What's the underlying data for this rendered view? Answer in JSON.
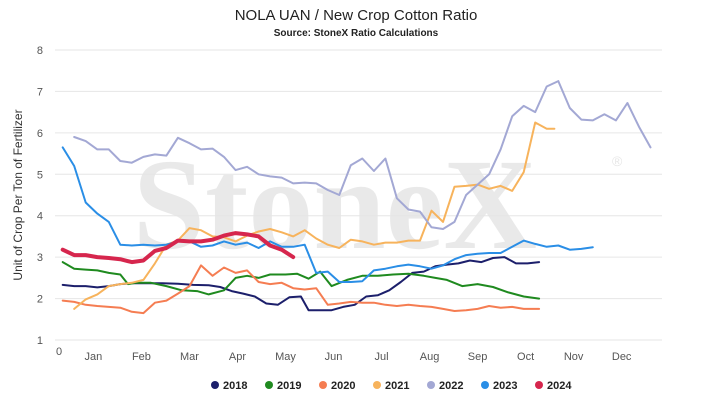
{
  "chart_data": {
    "type": "line",
    "title": "NOLA UAN / New Crop Cotton Ratio",
    "subtitle": "Source: StoneX Ratio Calculations",
    "ylabel": "Unit of Crop Per Ton of Fertilizer",
    "xlabel": "",
    "ylim": [
      1,
      8
    ],
    "yticks": [
      "1",
      "2",
      "3",
      "4",
      "5",
      "6",
      "7",
      "8"
    ],
    "x_origin_label": "0",
    "month_labels": [
      "Jan",
      "Feb",
      "Mar",
      "Apr",
      "May",
      "Jun",
      "Jul",
      "Aug",
      "Sep",
      "Oct",
      "Nov",
      "Dec"
    ],
    "watermark": "StoneX",
    "grid": "horizontal",
    "legend_position": "bottom",
    "series": [
      {
        "name": "2018",
        "color": "#1c1f6b",
        "width": 2,
        "points": [
          [
            0.2,
            2.33
          ],
          [
            0.5,
            2.3
          ],
          [
            0.8,
            2.3
          ],
          [
            1.1,
            2.27
          ],
          [
            1.4,
            2.3
          ],
          [
            1.7,
            2.35
          ],
          [
            2.0,
            2.37
          ],
          [
            2.4,
            2.37
          ],
          [
            2.8,
            2.37
          ],
          [
            3.2,
            2.36
          ],
          [
            3.6,
            2.33
          ],
          [
            4.0,
            2.32
          ],
          [
            4.3,
            2.28
          ],
          [
            4.6,
            2.18
          ],
          [
            4.9,
            2.12
          ],
          [
            5.2,
            2.05
          ],
          [
            5.5,
            1.88
          ],
          [
            5.8,
            1.85
          ],
          [
            6.1,
            2.03
          ],
          [
            6.4,
            2.05
          ],
          [
            6.6,
            1.72
          ],
          [
            6.9,
            1.72
          ],
          [
            7.2,
            1.72
          ],
          [
            7.5,
            1.8
          ],
          [
            7.8,
            1.85
          ],
          [
            8.1,
            2.05
          ],
          [
            8.4,
            2.08
          ],
          [
            8.7,
            2.2
          ],
          [
            9.0,
            2.4
          ],
          [
            9.3,
            2.62
          ],
          [
            9.6,
            2.65
          ],
          [
            9.9,
            2.78
          ],
          [
            10.2,
            2.82
          ],
          [
            10.5,
            2.85
          ],
          [
            10.8,
            2.92
          ],
          [
            11.1,
            2.88
          ],
          [
            11.4,
            2.98
          ],
          [
            11.7,
            3.0
          ],
          [
            12.0,
            2.85
          ],
          [
            12.3,
            2.85
          ],
          [
            12.6,
            2.88
          ]
        ]
      },
      {
        "name": "2019",
        "color": "#1f8a1f",
        "width": 2,
        "points": [
          [
            0.2,
            2.88
          ],
          [
            0.5,
            2.72
          ],
          [
            0.8,
            2.7
          ],
          [
            1.1,
            2.68
          ],
          [
            1.4,
            2.62
          ],
          [
            1.7,
            2.58
          ],
          [
            1.9,
            2.35
          ],
          [
            2.1,
            2.38
          ],
          [
            2.5,
            2.38
          ],
          [
            2.9,
            2.3
          ],
          [
            3.3,
            2.2
          ],
          [
            3.7,
            2.18
          ],
          [
            4.0,
            2.1
          ],
          [
            4.4,
            2.2
          ],
          [
            4.7,
            2.5
          ],
          [
            5.0,
            2.55
          ],
          [
            5.3,
            2.5
          ],
          [
            5.6,
            2.58
          ],
          [
            6.0,
            2.58
          ],
          [
            6.3,
            2.6
          ],
          [
            6.6,
            2.48
          ],
          [
            6.9,
            2.65
          ],
          [
            7.2,
            2.3
          ],
          [
            7.6,
            2.45
          ],
          [
            8.0,
            2.55
          ],
          [
            8.4,
            2.55
          ],
          [
            8.8,
            2.58
          ],
          [
            9.2,
            2.6
          ],
          [
            9.6,
            2.55
          ],
          [
            9.9,
            2.5
          ],
          [
            10.2,
            2.45
          ],
          [
            10.6,
            2.3
          ],
          [
            11.0,
            2.35
          ],
          [
            11.4,
            2.28
          ],
          [
            11.8,
            2.15
          ],
          [
            12.2,
            2.05
          ],
          [
            12.6,
            2.0
          ]
        ]
      },
      {
        "name": "2020",
        "color": "#f57d52",
        "width": 2,
        "points": [
          [
            0.2,
            1.95
          ],
          [
            0.5,
            1.92
          ],
          [
            0.8,
            1.85
          ],
          [
            1.1,
            1.82
          ],
          [
            1.4,
            1.8
          ],
          [
            1.7,
            1.78
          ],
          [
            2.0,
            1.68
          ],
          [
            2.3,
            1.65
          ],
          [
            2.6,
            1.9
          ],
          [
            2.9,
            1.95
          ],
          [
            3.2,
            2.12
          ],
          [
            3.5,
            2.3
          ],
          [
            3.8,
            2.8
          ],
          [
            4.1,
            2.55
          ],
          [
            4.4,
            2.75
          ],
          [
            4.7,
            2.62
          ],
          [
            5.0,
            2.68
          ],
          [
            5.3,
            2.4
          ],
          [
            5.6,
            2.35
          ],
          [
            5.9,
            2.38
          ],
          [
            6.2,
            2.25
          ],
          [
            6.5,
            2.22
          ],
          [
            6.8,
            2.25
          ],
          [
            7.1,
            1.85
          ],
          [
            7.4,
            1.88
          ],
          [
            7.7,
            1.92
          ],
          [
            8.0,
            1.9
          ],
          [
            8.3,
            1.9
          ],
          [
            8.6,
            1.85
          ],
          [
            8.9,
            1.82
          ],
          [
            9.2,
            1.85
          ],
          [
            9.5,
            1.82
          ],
          [
            9.8,
            1.8
          ],
          [
            10.1,
            1.75
          ],
          [
            10.4,
            1.7
          ],
          [
            10.7,
            1.72
          ],
          [
            11.0,
            1.75
          ],
          [
            11.3,
            1.82
          ],
          [
            11.6,
            1.78
          ],
          [
            11.9,
            1.8
          ],
          [
            12.2,
            1.75
          ],
          [
            12.6,
            1.75
          ]
        ]
      },
      {
        "name": "2021",
        "color": "#f7b35c",
        "width": 2,
        "points": [
          [
            0.5,
            1.75
          ],
          [
            0.8,
            1.98
          ],
          [
            1.1,
            2.1
          ],
          [
            1.4,
            2.3
          ],
          [
            1.7,
            2.35
          ],
          [
            2.0,
            2.38
          ],
          [
            2.3,
            2.45
          ],
          [
            2.6,
            2.85
          ],
          [
            2.9,
            3.3
          ],
          [
            3.2,
            3.4
          ],
          [
            3.5,
            3.7
          ],
          [
            3.8,
            3.65
          ],
          [
            4.1,
            3.5
          ],
          [
            4.4,
            3.48
          ],
          [
            4.7,
            3.38
          ],
          [
            5.0,
            3.52
          ],
          [
            5.3,
            3.62
          ],
          [
            5.6,
            3.68
          ],
          [
            5.9,
            3.6
          ],
          [
            6.2,
            3.5
          ],
          [
            6.5,
            3.65
          ],
          [
            6.8,
            3.45
          ],
          [
            7.1,
            3.3
          ],
          [
            7.4,
            3.22
          ],
          [
            7.7,
            3.42
          ],
          [
            8.0,
            3.38
          ],
          [
            8.3,
            3.3
          ],
          [
            8.6,
            3.35
          ],
          [
            8.9,
            3.35
          ],
          [
            9.2,
            3.4
          ],
          [
            9.5,
            3.4
          ],
          [
            9.8,
            4.12
          ],
          [
            10.1,
            3.85
          ],
          [
            10.4,
            4.7
          ],
          [
            10.7,
            4.72
          ],
          [
            11.0,
            4.75
          ],
          [
            11.3,
            4.65
          ],
          [
            11.6,
            4.72
          ],
          [
            11.9,
            4.6
          ],
          [
            12.2,
            5.05
          ],
          [
            12.5,
            6.25
          ],
          [
            12.8,
            6.1
          ],
          [
            13.0,
            6.1
          ]
        ]
      },
      {
        "name": "2022",
        "color": "#a3a8d4",
        "width": 2,
        "points": [
          [
            0.5,
            5.9
          ],
          [
            0.8,
            5.8
          ],
          [
            1.1,
            5.6
          ],
          [
            1.4,
            5.6
          ],
          [
            1.7,
            5.32
          ],
          [
            2.0,
            5.28
          ],
          [
            2.3,
            5.42
          ],
          [
            2.6,
            5.48
          ],
          [
            2.9,
            5.45
          ],
          [
            3.2,
            5.88
          ],
          [
            3.5,
            5.75
          ],
          [
            3.8,
            5.6
          ],
          [
            4.1,
            5.62
          ],
          [
            4.4,
            5.42
          ],
          [
            4.7,
            5.1
          ],
          [
            5.0,
            5.18
          ],
          [
            5.3,
            5.0
          ],
          [
            5.6,
            4.95
          ],
          [
            5.9,
            4.92
          ],
          [
            6.2,
            4.78
          ],
          [
            6.5,
            4.8
          ],
          [
            6.8,
            4.78
          ],
          [
            7.1,
            4.62
          ],
          [
            7.4,
            4.5
          ],
          [
            7.7,
            5.22
          ],
          [
            8.0,
            5.38
          ],
          [
            8.3,
            5.08
          ],
          [
            8.6,
            5.38
          ],
          [
            8.9,
            4.42
          ],
          [
            9.2,
            4.15
          ],
          [
            9.5,
            4.1
          ],
          [
            9.8,
            3.72
          ],
          [
            10.1,
            3.68
          ],
          [
            10.4,
            3.85
          ],
          [
            10.7,
            4.5
          ],
          [
            11.0,
            4.75
          ],
          [
            11.3,
            5.0
          ],
          [
            11.6,
            5.6
          ],
          [
            11.9,
            6.4
          ],
          [
            12.2,
            6.65
          ],
          [
            12.5,
            6.5
          ],
          [
            12.8,
            7.12
          ],
          [
            13.1,
            7.25
          ],
          [
            13.4,
            6.6
          ],
          [
            13.7,
            6.32
          ],
          [
            14.0,
            6.3
          ],
          [
            14.3,
            6.45
          ],
          [
            14.6,
            6.3
          ],
          [
            14.9,
            6.72
          ],
          [
            15.2,
            6.15
          ],
          [
            15.5,
            5.65
          ]
        ]
      },
      {
        "name": "2023",
        "color": "#2a8ee6",
        "width": 2,
        "points": [
          [
            0.2,
            5.65
          ],
          [
            0.5,
            5.2
          ],
          [
            0.8,
            4.32
          ],
          [
            1.1,
            4.05
          ],
          [
            1.4,
            3.85
          ],
          [
            1.7,
            3.3
          ],
          [
            2.0,
            3.28
          ],
          [
            2.3,
            3.3
          ],
          [
            2.6,
            3.28
          ],
          [
            2.9,
            3.3
          ],
          [
            3.2,
            3.38
          ],
          [
            3.5,
            3.38
          ],
          [
            3.8,
            3.25
          ],
          [
            4.1,
            3.28
          ],
          [
            4.4,
            3.38
          ],
          [
            4.7,
            3.3
          ],
          [
            5.0,
            3.35
          ],
          [
            5.3,
            3.22
          ],
          [
            5.6,
            3.38
          ],
          [
            5.9,
            3.25
          ],
          [
            6.2,
            3.25
          ],
          [
            6.5,
            3.3
          ],
          [
            6.8,
            2.62
          ],
          [
            7.1,
            2.65
          ],
          [
            7.4,
            2.4
          ],
          [
            7.7,
            2.4
          ],
          [
            8.0,
            2.42
          ],
          [
            8.3,
            2.68
          ],
          [
            8.6,
            2.72
          ],
          [
            8.9,
            2.78
          ],
          [
            9.2,
            2.82
          ],
          [
            9.5,
            2.78
          ],
          [
            9.8,
            2.72
          ],
          [
            10.1,
            2.8
          ],
          [
            10.4,
            2.95
          ],
          [
            10.7,
            3.05
          ],
          [
            11.0,
            3.08
          ],
          [
            11.3,
            3.1
          ],
          [
            11.6,
            3.1
          ],
          [
            11.9,
            3.25
          ],
          [
            12.2,
            3.4
          ],
          [
            12.5,
            3.32
          ],
          [
            12.8,
            3.25
          ],
          [
            13.1,
            3.28
          ],
          [
            13.4,
            3.18
          ],
          [
            13.7,
            3.2
          ],
          [
            14.0,
            3.24
          ]
        ]
      },
      {
        "name": "2024",
        "color": "#d6264d",
        "width": 4,
        "points": [
          [
            0.2,
            3.18
          ],
          [
            0.5,
            3.05
          ],
          [
            0.8,
            3.05
          ],
          [
            1.1,
            3.0
          ],
          [
            1.4,
            2.98
          ],
          [
            1.7,
            2.95
          ],
          [
            2.0,
            2.88
          ],
          [
            2.3,
            2.92
          ],
          [
            2.6,
            3.15
          ],
          [
            2.9,
            3.22
          ],
          [
            3.2,
            3.4
          ],
          [
            3.5,
            3.38
          ],
          [
            3.8,
            3.38
          ],
          [
            4.1,
            3.42
          ],
          [
            4.4,
            3.52
          ],
          [
            4.7,
            3.58
          ],
          [
            5.0,
            3.55
          ],
          [
            5.3,
            3.5
          ],
          [
            5.6,
            3.28
          ],
          [
            5.9,
            3.18
          ],
          [
            6.2,
            3.0
          ]
        ]
      }
    ]
  }
}
